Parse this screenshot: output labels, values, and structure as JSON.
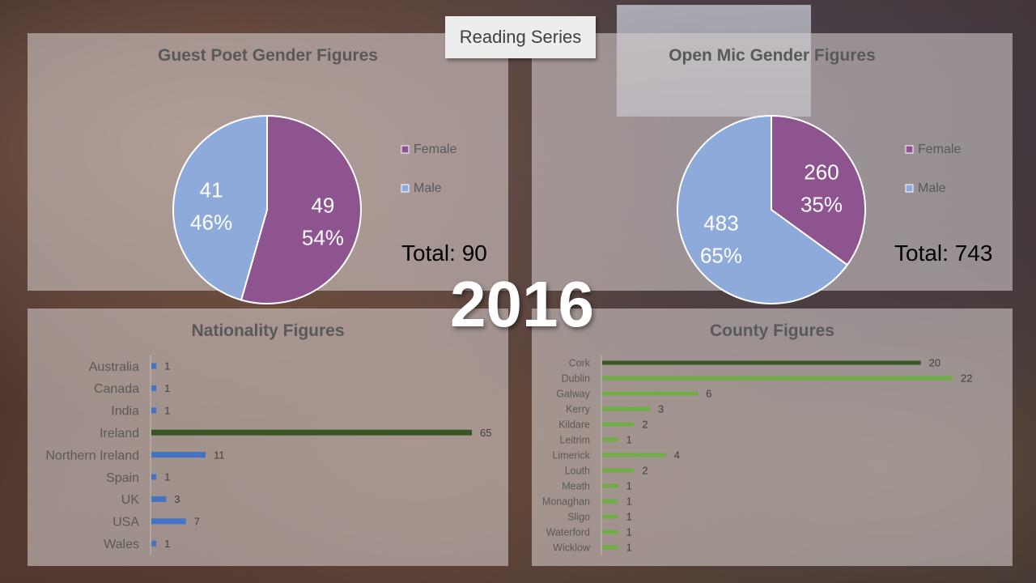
{
  "header": {
    "title": "Reading Series",
    "year": "2016"
  },
  "colors": {
    "female": "#8e548f",
    "male": "#8eaadb",
    "nationality_bar": "#4472c4",
    "nationality_highlight": "#375623",
    "county_bar": "#70ad47",
    "county_highlight": "#375623"
  },
  "chart_data": [
    {
      "type": "pie",
      "title": "Guest Poet Gender Figures",
      "series": [
        {
          "name": "Female",
          "value": 49,
          "percent": "54%"
        },
        {
          "name": "Male",
          "value": 41,
          "percent": "46%"
        }
      ],
      "total_label": "Total: 90",
      "legend": "right"
    },
    {
      "type": "pie",
      "title": "Open Mic Gender Figures",
      "series": [
        {
          "name": "Female",
          "value": 260,
          "percent": "35%"
        },
        {
          "name": "Male",
          "value": 483,
          "percent": "65%"
        }
      ],
      "total_label": "Total: 743",
      "legend": "right"
    },
    {
      "type": "bar",
      "orientation": "horizontal",
      "title": "Nationality Figures",
      "categories": [
        "Australia",
        "Canada",
        "India",
        "Ireland",
        "Northern Ireland",
        "Spain",
        "UK",
        "USA",
        "Wales"
      ],
      "values": [
        1,
        1,
        1,
        65,
        11,
        1,
        3,
        7,
        1
      ],
      "highlight": "Ireland",
      "xlim": [
        0,
        65
      ]
    },
    {
      "type": "bar",
      "orientation": "horizontal",
      "title": "County Figures",
      "categories": [
        "Cork",
        "Dublin",
        "Galway",
        "Kerry",
        "Kildare",
        "Leitrim",
        "Limerick",
        "Louth",
        "Meath",
        "Monaghan",
        "Sligo",
        "Waterford",
        "Wicklow"
      ],
      "values": [
        20,
        22,
        6,
        3,
        2,
        1,
        4,
        2,
        1,
        1,
        1,
        1,
        1
      ],
      "highlight": "Cork",
      "xlim": [
        0,
        22
      ]
    }
  ]
}
